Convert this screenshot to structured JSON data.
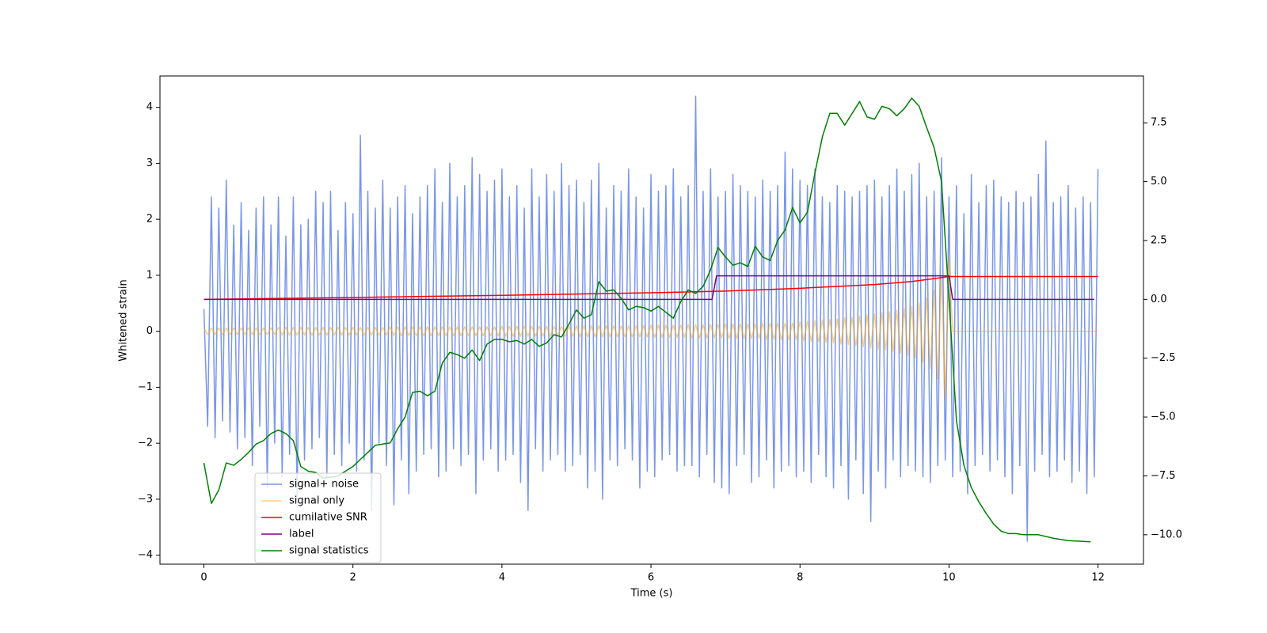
{
  "chart_data": {
    "type": "line",
    "xlabel": "Time (s)",
    "ylabel": "Whitened strain",
    "xlim": [
      -0.59,
      12.61
    ],
    "ylim": [
      -4.16,
      4.56
    ],
    "y2lim": [
      -11.25,
      9.49
    ],
    "xticks": [
      0,
      2,
      4,
      6,
      8,
      10,
      12
    ],
    "yticks": [
      {
        "value": -4,
        "label": "−4"
      },
      {
        "value": -3,
        "label": "−3"
      },
      {
        "value": -2,
        "label": "−2"
      },
      {
        "value": -1,
        "label": "−1"
      },
      0,
      1,
      2,
      3,
      4
    ],
    "y2ticks": [
      {
        "value": -10,
        "label": "−10.0"
      },
      {
        "value": -7.5,
        "label": "−7.5"
      },
      {
        "value": -5,
        "label": "−5.0"
      },
      {
        "value": -2.5,
        "label": "−2.5"
      },
      {
        "value": 0,
        "label": "0.0"
      },
      2.5,
      {
        "value": 5,
        "label": "5.0"
      },
      7.5
    ],
    "legend": "lower left",
    "x": [
      0,
      0.05,
      0.1,
      0.15,
      0.2,
      0.25,
      0.3,
      0.35,
      0.4,
      0.45,
      0.5,
      0.55,
      0.6,
      0.65,
      0.7,
      0.75,
      0.8,
      0.85,
      0.9,
      0.95,
      1,
      1.05,
      1.1,
      1.15,
      1.2,
      1.25,
      1.3,
      1.35,
      1.4,
      1.45,
      1.5,
      1.55,
      1.6,
      1.65,
      1.7,
      1.75,
      1.8,
      1.85,
      1.9,
      1.95,
      2,
      2.05,
      2.1,
      2.15,
      2.2,
      2.25,
      2.3,
      2.35,
      2.4,
      2.45,
      2.5,
      2.55,
      2.6,
      2.65,
      2.7,
      2.75,
      2.8,
      2.85,
      2.9,
      2.95,
      3,
      3.05,
      3.1,
      3.15,
      3.2,
      3.25,
      3.3,
      3.35,
      3.4,
      3.45,
      3.5,
      3.55,
      3.6,
      3.65,
      3.7,
      3.75,
      3.8,
      3.85,
      3.9,
      3.95,
      4,
      4.05,
      4.1,
      4.15,
      4.2,
      4.25,
      4.3,
      4.35,
      4.4,
      4.45,
      4.5,
      4.55,
      4.6,
      4.65,
      4.7,
      4.75,
      4.8,
      4.85,
      4.9,
      4.95,
      5,
      5.05,
      5.1,
      5.15,
      5.2,
      5.25,
      5.3,
      5.35,
      5.4,
      5.45,
      5.5,
      5.55,
      5.6,
      5.65,
      5.7,
      5.75,
      5.8,
      5.85,
      5.9,
      5.95,
      6,
      6.05,
      6.1,
      6.15,
      6.2,
      6.25,
      6.3,
      6.35,
      6.4,
      6.45,
      6.5,
      6.55,
      6.6,
      6.65,
      6.7,
      6.75,
      6.8,
      6.85,
      6.9,
      6.95,
      7,
      7.05,
      7.1,
      7.15,
      7.2,
      7.25,
      7.3,
      7.35,
      7.4,
      7.45,
      7.5,
      7.55,
      7.6,
      7.65,
      7.7,
      7.75,
      7.8,
      7.85,
      7.9,
      7.95,
      8,
      8.05,
      8.1,
      8.15,
      8.2,
      8.25,
      8.3,
      8.35,
      8.4,
      8.45,
      8.5,
      8.55,
      8.6,
      8.65,
      8.7,
      8.75,
      8.8,
      8.85,
      8.9,
      8.95,
      9,
      9.05,
      9.1,
      9.15,
      9.2,
      9.25,
      9.3,
      9.35,
      9.4,
      9.45,
      9.5,
      9.55,
      9.6,
      9.65,
      9.7,
      9.75,
      9.8,
      9.85,
      9.9,
      9.95,
      10,
      10.05,
      10.1,
      10.15,
      10.2,
      10.25,
      10.3,
      10.35,
      10.4,
      10.45,
      10.5,
      10.55,
      10.6,
      10.65,
      10.7,
      10.75,
      10.8,
      10.85,
      10.9,
      10.95,
      11,
      11.05,
      11.1,
      11.15,
      11.2,
      11.25,
      11.3,
      11.35,
      11.4,
      11.45,
      11.5,
      11.55,
      11.6,
      11.65,
      11.7,
      11.75,
      11.8,
      11.85,
      11.9,
      11.95,
      12
    ],
    "series": [
      {
        "name": "signal+ noise",
        "color": "#4169e1",
        "alpha": 0.7,
        "axis": "y",
        "values": [
          0.4,
          -1.7,
          2.4,
          -1.9,
          2.2,
          -1.6,
          2.7,
          -1.8,
          1.9,
          -2.1,
          2.3,
          -1.9,
          1.8,
          -2.4,
          2.2,
          -1.7,
          2.4,
          -2.8,
          1.9,
          -2.0,
          2.4,
          -2.6,
          1.7,
          -2.2,
          2.4,
          -3.0,
          1.9,
          -2.3,
          2.0,
          -2.1,
          2.5,
          -1.9,
          2.3,
          -2.6,
          2.5,
          -2.2,
          1.8,
          -2.4,
          2.3,
          -2.0,
          2.1,
          -2.5,
          3.5,
          -2.3,
          2.5,
          -3.2,
          2.2,
          -2.0,
          2.7,
          -2.4,
          2.2,
          -3.1,
          2.4,
          -2.3,
          2.6,
          -2.9,
          2.1,
          -2.5,
          2.4,
          -2.2,
          2.6,
          -2.1,
          2.9,
          -2.6,
          2.3,
          -2.5,
          3.0,
          -2.1,
          2.4,
          -2.4,
          2.6,
          -2.2,
          3.1,
          -2.9,
          2.8,
          -2.3,
          2.5,
          -2.1,
          2.7,
          -2.5,
          2.9,
          -2.3,
          2.4,
          -2.2,
          2.6,
          -2.7,
          2.2,
          -3.2,
          2.9,
          -2.1,
          2.4,
          -2.5,
          2.8,
          -2.3,
          2.5,
          -2.2,
          3.0,
          -2.5,
          2.6,
          -2.4,
          2.7,
          -2.2,
          2.3,
          -2.8,
          2.7,
          -2.5,
          3.0,
          -3.0,
          2.2,
          -2.3,
          2.6,
          -2.4,
          2.5,
          -2.1,
          2.9,
          -2.3,
          2.4,
          -2.8,
          2.2,
          -2.5,
          2.8,
          -2.6,
          2.5,
          -2.3,
          2.6,
          -2.2,
          2.9,
          -2.5,
          2.4,
          -2.4,
          2.6,
          -2.4,
          4.2,
          -2.6,
          2.5,
          -2.2,
          2.9,
          -2.7,
          2.4,
          -2.8,
          2.5,
          -2.9,
          2.8,
          -2.4,
          2.6,
          -2.2,
          2.5,
          -2.7,
          2.4,
          -2.6,
          2.7,
          -2.3,
          2.5,
          -2.8,
          2.6,
          -2.5,
          3.2,
          -2.4,
          2.9,
          -2.6,
          2.7,
          -2.5,
          2.6,
          -2.7,
          2.9,
          -2.2,
          2.4,
          -2.6,
          2.3,
          -2.8,
          2.6,
          -2.4,
          2.5,
          -3.0,
          2.4,
          -2.3,
          2.5,
          -2.9,
          2.6,
          -3.4,
          2.7,
          -2.5,
          2.4,
          -2.8,
          2.6,
          -2.3,
          2.9,
          -2.6,
          2.5,
          -2.4,
          2.8,
          -2.5,
          3.0,
          -2.6,
          2.4,
          -2.7,
          2.5,
          -2.4,
          3.1,
          -2.3,
          2.4,
          -2.6,
          2.6,
          -2.5,
          2.1,
          -2.9,
          2.8,
          -2.4,
          2.3,
          -2.2,
          2.6,
          -2.5,
          2.7,
          -2.3,
          2.4,
          -2.6,
          2.3,
          -2.9,
          2.5,
          -2.4,
          2.3,
          -3.75,
          2.4,
          -2.5,
          2.8,
          -2.2,
          3.4,
          -2.6,
          2.3,
          -2.5,
          2.4,
          -2.3,
          2.6,
          -2.7,
          2.2,
          -2.5,
          2.4,
          -2.9,
          2.3,
          -2.6,
          2.9
        ]
      },
      {
        "name": "signal only",
        "color": "#ffa500",
        "alpha": 0.5,
        "axis": "y",
        "values": [
          0.06,
          -0.06,
          0.06,
          -0.06,
          0.06,
          -0.06,
          0.06,
          -0.06,
          0.06,
          -0.06,
          0.06,
          -0.06,
          0.06,
          -0.06,
          0.06,
          -0.06,
          0.06,
          -0.06,
          0.06,
          -0.06,
          0.07,
          -0.07,
          0.07,
          -0.07,
          0.07,
          -0.07,
          0.07,
          -0.07,
          0.07,
          -0.07,
          0.07,
          -0.07,
          0.07,
          -0.07,
          0.07,
          -0.07,
          0.07,
          -0.07,
          0.07,
          -0.07,
          0.07,
          -0.07,
          0.07,
          -0.07,
          0.07,
          -0.07,
          0.07,
          -0.07,
          0.07,
          -0.07,
          0.08,
          -0.08,
          0.08,
          -0.08,
          0.08,
          -0.08,
          0.08,
          -0.08,
          0.08,
          -0.08,
          0.08,
          -0.08,
          0.08,
          -0.08,
          0.08,
          -0.08,
          0.08,
          -0.08,
          0.08,
          -0.08,
          0.08,
          -0.08,
          0.08,
          -0.08,
          0.08,
          -0.08,
          0.08,
          -0.08,
          0.08,
          -0.08,
          0.09,
          -0.09,
          0.09,
          -0.09,
          0.09,
          -0.09,
          0.09,
          -0.09,
          0.09,
          -0.09,
          0.09,
          -0.09,
          0.09,
          -0.09,
          0.09,
          -0.09,
          0.09,
          -0.09,
          0.09,
          -0.09,
          0.1,
          -0.1,
          0.1,
          -0.1,
          0.1,
          -0.1,
          0.1,
          -0.1,
          0.1,
          -0.1,
          0.1,
          -0.1,
          0.1,
          -0.1,
          0.1,
          -0.1,
          0.1,
          -0.1,
          0.1,
          -0.1,
          0.11,
          -0.11,
          0.11,
          -0.11,
          0.11,
          -0.11,
          0.11,
          -0.11,
          0.11,
          -0.11,
          0.12,
          -0.12,
          0.12,
          -0.12,
          0.12,
          -0.12,
          0.12,
          -0.12,
          0.12,
          -0.12,
          0.13,
          -0.13,
          0.13,
          -0.13,
          0.13,
          -0.13,
          0.13,
          -0.13,
          0.13,
          -0.13,
          0.15,
          -0.15,
          0.15,
          -0.15,
          0.15,
          -0.15,
          0.15,
          -0.15,
          0.15,
          -0.15,
          0.17,
          -0.17,
          0.18,
          -0.18,
          0.19,
          -0.19,
          0.2,
          -0.2,
          0.21,
          -0.21,
          0.22,
          -0.23,
          0.24,
          -0.24,
          0.25,
          -0.26,
          0.27,
          -0.28,
          0.29,
          -0.3,
          0.31,
          -0.32,
          0.33,
          -0.34,
          0.35,
          -0.36,
          0.38,
          -0.39,
          0.41,
          -0.43,
          0.45,
          -0.48,
          0.51,
          -0.55,
          0.6,
          -0.66,
          0.74,
          -0.85,
          1.0,
          -1.2,
          1.3,
          0,
          0,
          0,
          0,
          0,
          0,
          0,
          0,
          0,
          0,
          0,
          0,
          0,
          0,
          0,
          0,
          0,
          0,
          0,
          0,
          0,
          0,
          0,
          0,
          0,
          0,
          0,
          0,
          0,
          0,
          0,
          0,
          0,
          0,
          0,
          0,
          0,
          0,
          0,
          0
        ]
      },
      {
        "name": "cumilative SNR",
        "color": "#ff0000",
        "alpha": 1,
        "axis": "y2",
        "x": [
          0,
          2,
          4,
          6,
          7,
          8,
          9,
          9.5,
          9.8,
          10,
          12
        ],
        "values": [
          0,
          0.08,
          0.17,
          0.28,
          0.35,
          0.47,
          0.63,
          0.76,
          0.88,
          0.97,
          0.97
        ]
      },
      {
        "name": "label",
        "color": "#800080",
        "alpha": 1,
        "axis": "y2",
        "x": [
          0,
          6.82,
          6.88,
          10,
          10.05,
          11.95
        ],
        "values": [
          0,
          0,
          1,
          1,
          0,
          0
        ]
      },
      {
        "name": "signal statistics",
        "color": "#008000",
        "alpha": 1,
        "axis": "y2",
        "x": [
          0,
          0.1,
          0.2,
          0.3,
          0.4,
          0.5,
          0.6,
          0.7,
          0.8,
          0.9,
          1,
          1.1,
          1.2,
          1.3,
          1.4,
          1.5,
          1.6,
          1.7,
          1.8,
          1.9,
          2,
          2.1,
          2.2,
          2.3,
          2.4,
          2.5,
          2.6,
          2.7,
          2.8,
          2.9,
          3,
          3.1,
          3.2,
          3.3,
          3.4,
          3.5,
          3.6,
          3.7,
          3.8,
          3.9,
          4,
          4.1,
          4.2,
          4.3,
          4.4,
          4.5,
          4.6,
          4.7,
          4.8,
          4.9,
          5,
          5.1,
          5.2,
          5.3,
          5.4,
          5.5,
          5.6,
          5.7,
          5.8,
          5.9,
          6,
          6.1,
          6.2,
          6.3,
          6.4,
          6.5,
          6.6,
          6.7,
          6.8,
          6.9,
          7,
          7.1,
          7.2,
          7.3,
          7.4,
          7.5,
          7.6,
          7.7,
          7.8,
          7.9,
          8,
          8.1,
          8.2,
          8.3,
          8.4,
          8.5,
          8.6,
          8.7,
          8.8,
          8.9,
          9,
          9.1,
          9.2,
          9.3,
          9.4,
          9.5,
          9.6,
          9.7,
          9.8,
          9.9,
          10,
          10.1,
          10.2,
          10.3,
          10.4,
          10.5,
          10.6,
          10.7,
          10.8,
          10.9,
          11,
          11.2,
          11.4,
          11.6,
          11.9
        ],
        "values": [
          -6.95,
          -8.67,
          -8.1,
          -6.95,
          -7.05,
          -6.8,
          -6.5,
          -6.15,
          -6.0,
          -5.7,
          -5.55,
          -5.7,
          -6.0,
          -7.1,
          -7.3,
          -7.35,
          -7.6,
          -7.55,
          -7.5,
          -7.3,
          -7.1,
          -6.8,
          -6.5,
          -6.2,
          -6.15,
          -6.1,
          -5.5,
          -5.0,
          -3.95,
          -3.9,
          -4.1,
          -3.9,
          -2.7,
          -2.25,
          -2.35,
          -2.5,
          -2.15,
          -2.6,
          -1.9,
          -1.7,
          -1.7,
          -1.8,
          -1.75,
          -1.9,
          -1.7,
          -2.0,
          -1.85,
          -1.5,
          -1.6,
          -1.05,
          -0.45,
          -0.8,
          -0.65,
          0.75,
          0.35,
          0.4,
          0.05,
          -0.45,
          -0.3,
          -0.35,
          -0.5,
          -0.3,
          -0.55,
          -0.8,
          -0.1,
          0.4,
          0.25,
          0.55,
          1.25,
          2.2,
          1.8,
          1.45,
          1.55,
          1.4,
          2.25,
          1.8,
          1.65,
          2.5,
          2.95,
          3.9,
          3.25,
          3.7,
          5.35,
          6.9,
          7.9,
          7.9,
          7.4,
          7.9,
          8.4,
          7.75,
          7.65,
          8.2,
          8.1,
          7.8,
          8.1,
          8.55,
          8.2,
          7.3,
          6.45,
          5.0,
          0.0,
          -5.15,
          -7.05,
          -8.0,
          -8.6,
          -9.1,
          -9.55,
          -9.85,
          -9.95,
          -9.95,
          -10.0,
          -10.0,
          -10.15,
          -10.25,
          -10.3
        ]
      }
    ]
  }
}
